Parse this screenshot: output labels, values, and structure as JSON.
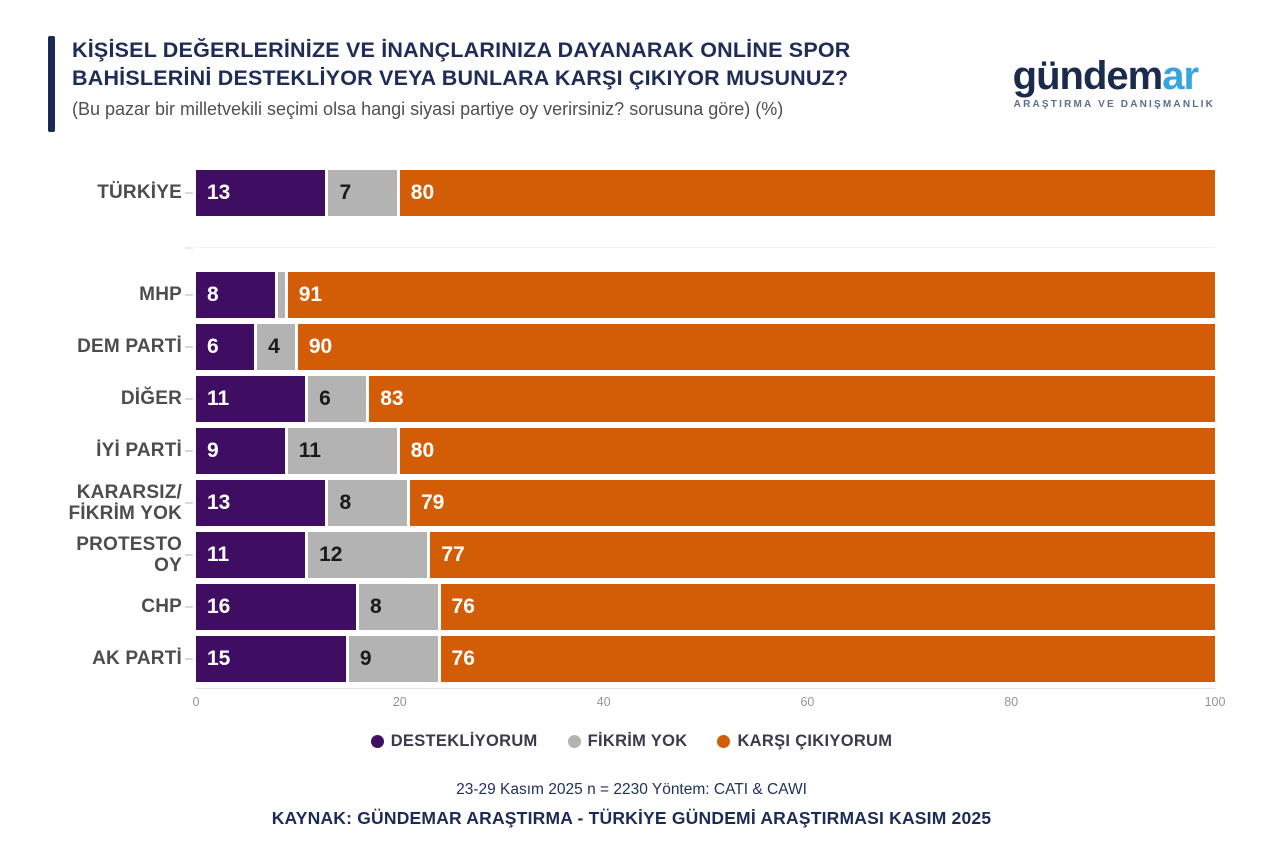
{
  "header": {
    "title_pre": "KİŞİSEL DEĞERLERİNİZE VE İNANÇLARINIZA DAYANARAK ",
    "title_strong": "ONLİNE SPOR BAHİSLERİNİ",
    "title_post": " DESTEKLİYOR VEYA BUNLARA KARŞI ÇIKIYOR MUSUNUZ?",
    "subtitle": "(Bu pazar bir milletvekili seçimi olsa hangi siyasi partiye oy verirsiniz? sorusuna göre) (%)",
    "accent_color": "#1c2b55"
  },
  "logo": {
    "part1": "gündem",
    "part2": "ar",
    "tagline": "ARAŞTIRMA VE DANIŞMANLIK",
    "navy": "#1b2b4e",
    "blue": "#36a4dd"
  },
  "chart_data": {
    "type": "bar",
    "orientation": "horizontal",
    "stacked": true,
    "title": "KİŞİSEL DEĞERLERİNİZE VE İNANÇLARINIZA DAYANARAK ONLİNE SPOR BAHİSLERİNİ DESTEKLİYOR VEYA BUNLARA KARŞI ÇIKIYOR MUSUNUZ?",
    "categories": [
      "TÜRKİYE",
      "MHP",
      "DEM PARTİ",
      "DİĞER",
      "İYİ PARTİ",
      "KARARSIZ/FİKRİM YOK",
      "PROTESTO OY",
      "CHP",
      "AK PARTİ"
    ],
    "category_lines": [
      [
        "TÜRKİYE"
      ],
      [
        "MHP"
      ],
      [
        "DEM PARTİ"
      ],
      [
        "DİĞER"
      ],
      [
        "İYİ PARTİ"
      ],
      [
        "KARARSIZ/",
        "FİKRİM YOK"
      ],
      [
        "PROTESTO OY"
      ],
      [
        "CHP"
      ],
      [
        "AK PARTİ"
      ]
    ],
    "series": [
      {
        "name": "DESTEKLİYORUM",
        "color": "#3f0e63",
        "label_color": "#ffffff",
        "values": [
          13,
          8,
          6,
          11,
          9,
          13,
          11,
          16,
          15
        ]
      },
      {
        "name": "FİKRİM YOK",
        "color": "#b3b3b3",
        "label_color": "#1a1a1a",
        "values": [
          7,
          1,
          4,
          6,
          11,
          8,
          12,
          8,
          9
        ]
      },
      {
        "name": "KARŞI ÇIKIYORUM",
        "color": "#d35c07",
        "label_color": "#ffffff",
        "values": [
          80,
          91,
          90,
          83,
          80,
          79,
          77,
          76,
          76
        ]
      }
    ],
    "xlim": [
      0,
      100
    ],
    "x_ticks": [
      0,
      20,
      40,
      60,
      80,
      100
    ],
    "min_label_value": 3,
    "separator_after_index": 0,
    "legend_position": "bottom",
    "grid": false
  },
  "footer": {
    "method": "23-29 Kasım 2025 n = 2230 Yöntem: CATI & CAWI",
    "source": "KAYNAK: GÜNDEMAR ARAŞTIRMA - TÜRKİYE GÜNDEMİ ARAŞTIRMASI KASIM 2025"
  }
}
